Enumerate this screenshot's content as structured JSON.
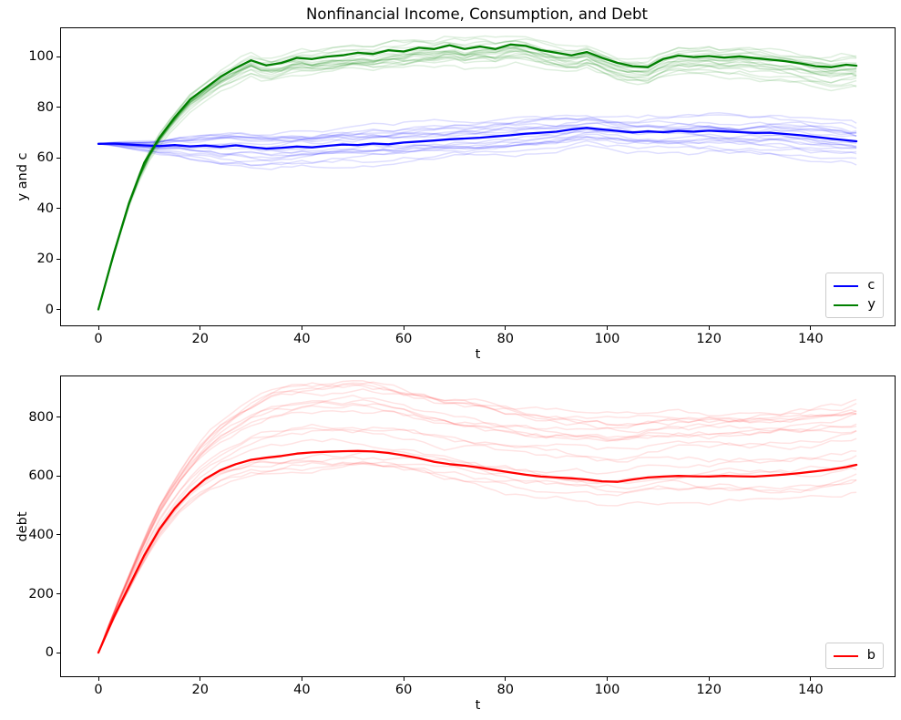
{
  "figure": {
    "background": "#ffffff",
    "spine_color": "#000000"
  },
  "chart_data": [
    {
      "type": "line",
      "title": "Nonfinancial Income, Consumption, and Debt",
      "xlabel": "t",
      "ylabel": "y and c",
      "xlim": [
        -7.35,
        156.5
      ],
      "ylim": [
        -6.3,
        111.2
      ],
      "xticks": [
        0,
        20,
        40,
        60,
        80,
        100,
        120,
        140
      ],
      "yticks": [
        0,
        20,
        40,
        60,
        80,
        100
      ],
      "grid": false,
      "legend": {
        "position": "lower right",
        "entries": [
          {
            "label": "c",
            "color": "#0000ff"
          },
          {
            "label": "y",
            "color": "#008000"
          }
        ]
      },
      "t": [
        0,
        3,
        6,
        9,
        12,
        15,
        18,
        21,
        24,
        27,
        30,
        33,
        36,
        39,
        42,
        45,
        48,
        51,
        54,
        57,
        60,
        63,
        66,
        69,
        72,
        75,
        78,
        81,
        84,
        87,
        90,
        93,
        96,
        99,
        102,
        105,
        108,
        111,
        114,
        117,
        120,
        123,
        126,
        129,
        132,
        135,
        138,
        141,
        144,
        147,
        149
      ],
      "series": [
        {
          "name": "c",
          "color": "#0000ff",
          "values": [
            65.5,
            65.6,
            65.2,
            64.9,
            64.6,
            65.0,
            64.5,
            64.8,
            64.3,
            64.9,
            64.2,
            63.6,
            63.9,
            64.4,
            64.1,
            64.7,
            65.2,
            65.0,
            65.6,
            65.3,
            66.0,
            66.4,
            66.8,
            67.3,
            67.6,
            67.9,
            68.4,
            68.9,
            69.5,
            69.9,
            70.3,
            71.2,
            71.8,
            71.2,
            70.6,
            70.0,
            70.4,
            70.1,
            70.6,
            70.3,
            70.7,
            70.4,
            70.1,
            69.8,
            69.9,
            69.4,
            68.9,
            68.2,
            67.5,
            66.9,
            66.5
          ]
        },
        {
          "name": "y",
          "color": "#008000",
          "values": [
            0,
            22,
            42,
            58,
            68,
            76,
            83,
            87.5,
            92,
            95.5,
            98.5,
            96.5,
            97.5,
            99.5,
            99,
            100,
            100.5,
            101.5,
            101,
            102.5,
            102,
            103.5,
            103,
            104.5,
            103,
            104,
            103,
            104.8,
            104.2,
            102.5,
            101.5,
            100.5,
            101.8,
            99.5,
            97.5,
            96.2,
            95.8,
            99,
            100.4,
            99.8,
            100.2,
            99.6,
            100.1,
            99.4,
            98.8,
            98.2,
            97.3,
            96.2,
            95.8,
            96.8,
            96.4
          ]
        }
      ],
      "ensemble": [
        {
          "follows": "c",
          "count": 20,
          "color": "#0000ff",
          "opacity": 0.13,
          "sigma": 0.9,
          "persistence": 0.96,
          "ramp": 25,
          "bias": [
            -7,
            5
          ],
          "seed": 7
        },
        {
          "follows": "y",
          "count": 20,
          "color": "#008000",
          "opacity": 0.13,
          "sigma": 0.9,
          "persistence": 0.96,
          "ramp": 30,
          "bias": [
            -6,
            3
          ],
          "seed": 11
        }
      ]
    },
    {
      "type": "line",
      "title": "",
      "xlabel": "t",
      "ylabel": "debt",
      "xlim": [
        -7.35,
        156.5
      ],
      "ylim": [
        -80,
        938
      ],
      "xticks": [
        0,
        20,
        40,
        60,
        80,
        100,
        120,
        140
      ],
      "yticks": [
        0,
        200,
        400,
        600,
        800
      ],
      "grid": false,
      "legend": {
        "position": "lower right",
        "entries": [
          {
            "label": "b",
            "color": "#ff0000"
          }
        ]
      },
      "t": [
        0,
        3,
        6,
        9,
        12,
        15,
        18,
        21,
        24,
        27,
        30,
        33,
        36,
        39,
        42,
        45,
        48,
        51,
        54,
        57,
        60,
        63,
        66,
        69,
        72,
        75,
        78,
        81,
        84,
        87,
        90,
        93,
        96,
        99,
        102,
        105,
        108,
        111,
        114,
        117,
        120,
        123,
        126,
        129,
        132,
        135,
        138,
        141,
        144,
        147,
        149
      ],
      "series": [
        {
          "name": "b",
          "color": "#ff0000",
          "values": [
            0,
            120,
            225,
            330,
            420,
            490,
            545,
            590,
            620,
            640,
            655,
            662,
            668,
            676,
            680,
            682,
            684,
            685,
            683,
            678,
            670,
            660,
            648,
            640,
            635,
            628,
            620,
            612,
            604,
            598,
            595,
            592,
            588,
            582,
            580,
            588,
            595,
            598,
            600,
            599,
            598,
            600,
            599,
            598,
            601,
            605,
            610,
            616,
            622,
            630,
            638
          ]
        }
      ],
      "ensemble": [
        {
          "follows": "b",
          "count": 20,
          "color": "#ff0000",
          "opacity": 0.11,
          "sigma": 10,
          "persistence": 0.96,
          "ramp": 35,
          "bias": [
            -70,
            230
          ],
          "seed": 23
        }
      ]
    }
  ]
}
